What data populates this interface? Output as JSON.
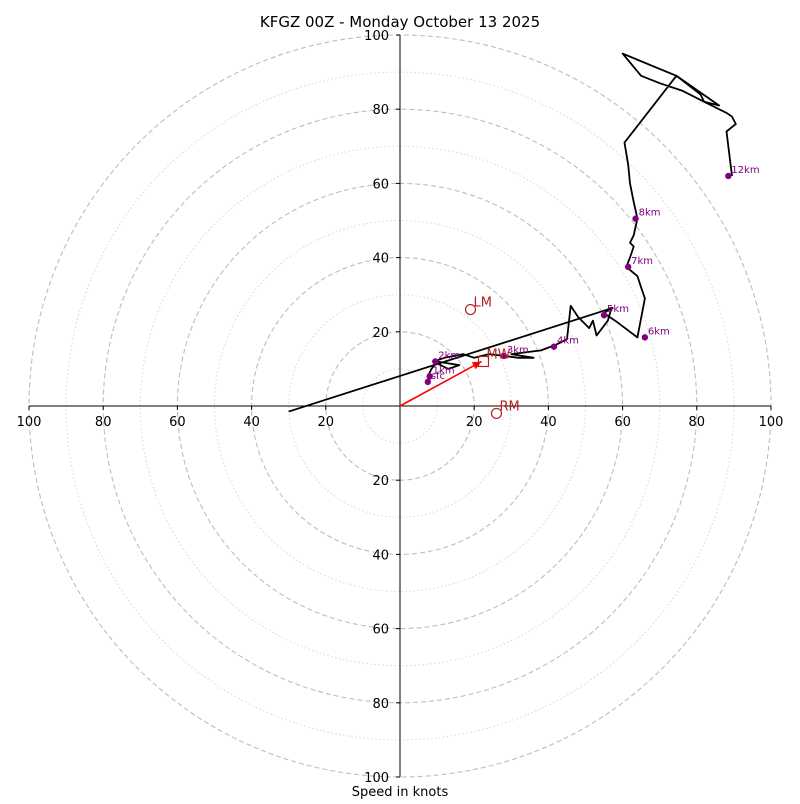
{
  "chart_data": {
    "type": "line",
    "title": "KFGZ 00Z - Monday October 13 2025",
    "xlabel": "Speed in knots",
    "ylabel": "",
    "xlim": [
      -100,
      100
    ],
    "ylim": [
      -100,
      100
    ],
    "ring_major_values": [
      20,
      40,
      60,
      80,
      100
    ],
    "ring_minor_values": [
      10,
      30,
      50,
      70,
      90
    ],
    "x_tick_labels": [
      "100",
      "80",
      "60",
      "40",
      "20",
      "20",
      "40",
      "60",
      "80",
      "100"
    ],
    "x_tick_values": [
      -100,
      -80,
      -60,
      -40,
      -20,
      20,
      40,
      60,
      80,
      100
    ],
    "y_tick_labels": [
      "100",
      "80",
      "60",
      "40",
      "20",
      "20",
      "40",
      "60",
      "80",
      "100"
    ],
    "y_tick_values": [
      100,
      80,
      60,
      40,
      20,
      -20,
      -40,
      -60,
      -80,
      -100
    ],
    "hodograph": {
      "name": "wind profile",
      "u": [
        8,
        7.5,
        8.5,
        10,
        16,
        13,
        9,
        12,
        17,
        20,
        24,
        28,
        32,
        36,
        30,
        38,
        42,
        45,
        46,
        48,
        51,
        52,
        53,
        56,
        57,
        55,
        58,
        62,
        64,
        66,
        65,
        64,
        61,
        62,
        63,
        62,
        63,
        64,
        63,
        62,
        61.5,
        60.5,
        74.5,
        86,
        82,
        76,
        70,
        65,
        60,
        74.5,
        81,
        82,
        84,
        88,
        89.5,
        90.5,
        88,
        89.5
      ],
      "v": [
        6.5,
        8,
        10,
        12,
        11,
        10,
        12,
        13,
        14,
        13,
        14,
        13.5,
        13,
        13,
        14,
        15,
        16.5,
        18,
        27,
        24,
        21,
        23,
        19,
        23,
        26.5,
        25,
        23,
        20,
        18.5,
        29,
        32,
        35,
        37.5,
        40,
        43,
        44,
        46,
        50.5,
        55,
        60,
        65,
        71,
        89,
        81,
        82,
        85,
        87,
        89,
        95,
        89,
        84,
        82,
        81,
        79,
        78,
        76,
        74,
        62
      ]
    },
    "bulk_shear_vector": {
      "name": "shear line",
      "start": [
        -30,
        -1.5
      ],
      "end": [
        57.5,
        26.5
      ]
    },
    "height_markers": [
      {
        "label": "sfc",
        "u": 7.5,
        "v": 6.5
      },
      {
        "label": "1km",
        "u": 8,
        "v": 8
      },
      {
        "label": "2km",
        "u": 9.5,
        "v": 12
      },
      {
        "label": "3km",
        "u": 28,
        "v": 13.5
      },
      {
        "label": "4km",
        "u": 41.5,
        "v": 16
      },
      {
        "label": "5km",
        "u": 55,
        "v": 24.5
      },
      {
        "label": "6km",
        "u": 66,
        "v": 18.5
      },
      {
        "label": "7km",
        "u": 61.5,
        "v": 37.5
      },
      {
        "label": "8km",
        "u": 63.5,
        "v": 50.5
      },
      {
        "label": "12km",
        "u": 88.5,
        "v": 62
      }
    ],
    "storm_motions": [
      {
        "label": "LM",
        "u": 19,
        "v": 26,
        "shape": "circle"
      },
      {
        "label": "MW",
        "u": 22.5,
        "v": 12,
        "shape": "square"
      },
      {
        "label": "RM",
        "u": 26,
        "v": -2,
        "shape": "circle"
      }
    ],
    "mean_wind_arrow": {
      "start": [
        0,
        0
      ],
      "end": [
        22,
        12
      ]
    },
    "colors": {
      "hodograph": "#000000",
      "markers": "#800080",
      "storm_motion": "#b22222",
      "arrow": "#ff0000",
      "ring": "#bdbdbd"
    }
  }
}
